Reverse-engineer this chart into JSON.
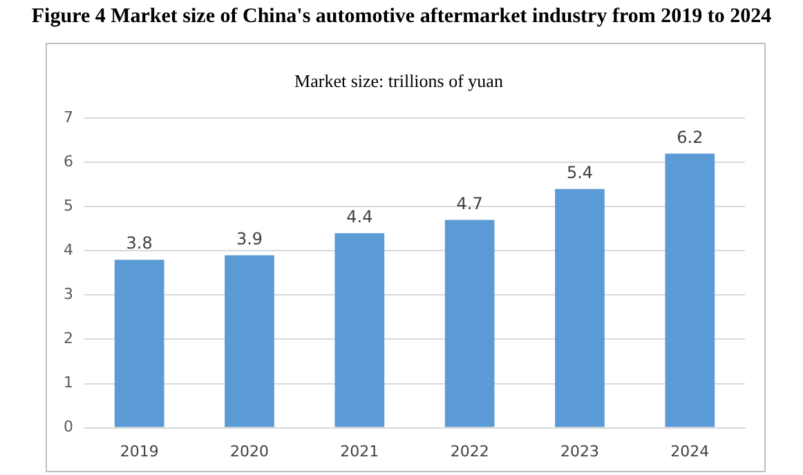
{
  "chart_data": {
    "type": "bar",
    "title": "Figure 4 Market size of China's automotive aftermarket industry from 2019 to 2024",
    "subtitle": "Market size: trillions of yuan",
    "categories": [
      "2019",
      "2020",
      "2021",
      "2022",
      "2023",
      "2024"
    ],
    "values": [
      3.8,
      3.9,
      4.4,
      4.7,
      5.4,
      6.2
    ],
    "color": "#5b9bd5",
    "ylim": [
      0,
      7
    ],
    "yticks": [
      0,
      1,
      2,
      3,
      4,
      5,
      6,
      7
    ],
    "grid": "y",
    "data_labels": true,
    "legend": false
  }
}
